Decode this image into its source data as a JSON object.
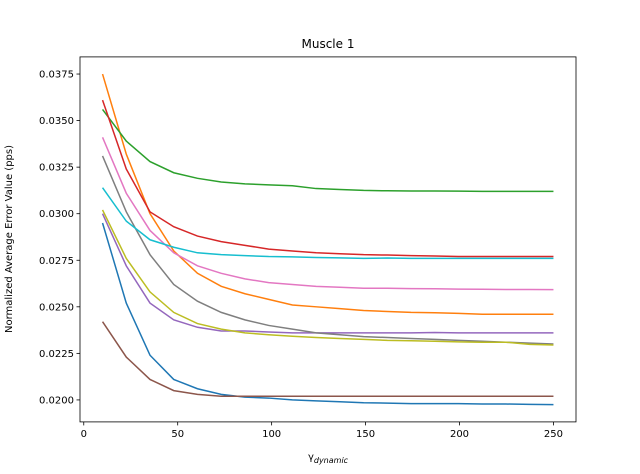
{
  "chart_data": {
    "type": "line",
    "title": "Muscle 1",
    "y_label": "Normalized Average Error Value (pps)",
    "x_label": {
      "symbol": "γ",
      "subscript": "dynamic"
    },
    "x": [
      10,
      22.63,
      35.26,
      47.89,
      60.53,
      73.16,
      85.79,
      98.42,
      111.05,
      123.68,
      136.32,
      148.95,
      161.58,
      174.21,
      186.84,
      199.47,
      212.11,
      224.74,
      237.37,
      250
    ],
    "xlim": [
      -2,
      262
    ],
    "xticks": [
      0,
      50,
      100,
      150,
      200,
      250
    ],
    "ylim": [
      0.01882,
      0.03842
    ],
    "yticks": [
      {
        "value": 0.02,
        "label": "0.0200"
      },
      {
        "value": 0.0225,
        "label": "0.0225"
      },
      {
        "value": 0.025,
        "label": "0.0250"
      },
      {
        "value": 0.0275,
        "label": "0.0275"
      },
      {
        "value": 0.03,
        "label": "0.0300"
      },
      {
        "value": 0.0325,
        "label": "0.0325"
      },
      {
        "value": 0.035,
        "label": "0.0350"
      },
      {
        "value": 0.0375,
        "label": "0.0375"
      }
    ],
    "series": [
      {
        "color": "#1f77b4",
        "values": [
          0.0295,
          0.0252,
          0.0224,
          0.0211,
          0.0206,
          0.0203,
          0.02015,
          0.0201,
          0.02,
          0.01995,
          0.0199,
          0.01985,
          0.01983,
          0.0198,
          0.0198,
          0.0198,
          0.01978,
          0.01978,
          0.01976,
          0.01975
        ]
      },
      {
        "color": "#ff7f0e",
        "values": [
          0.0375,
          0.0332,
          0.03,
          0.028,
          0.0268,
          0.0261,
          0.0257,
          0.0254,
          0.0251,
          0.025,
          0.0249,
          0.0248,
          0.02475,
          0.0247,
          0.02468,
          0.02465,
          0.0246,
          0.0246,
          0.0246,
          0.0246
        ]
      },
      {
        "color": "#2ca02c",
        "values": [
          0.0356,
          0.0339,
          0.0328,
          0.0322,
          0.0319,
          0.0317,
          0.0316,
          0.03155,
          0.0315,
          0.03135,
          0.0313,
          0.03125,
          0.03123,
          0.03122,
          0.03122,
          0.03121,
          0.0312,
          0.0312,
          0.0312,
          0.0312
        ]
      },
      {
        "color": "#d62728",
        "values": [
          0.0361,
          0.0324,
          0.0301,
          0.0293,
          0.0288,
          0.0285,
          0.0283,
          0.0281,
          0.028,
          0.0279,
          0.02785,
          0.0278,
          0.02778,
          0.02775,
          0.02773,
          0.0277,
          0.0277,
          0.0277,
          0.0277,
          0.0277
        ]
      },
      {
        "color": "#9467bd",
        "values": [
          0.03,
          0.0272,
          0.0252,
          0.0243,
          0.0239,
          0.0237,
          0.0237,
          0.02365,
          0.0236,
          0.0236,
          0.0236,
          0.0236,
          0.0236,
          0.0236,
          0.02362,
          0.0236,
          0.0236,
          0.0236,
          0.0236,
          0.0236
        ]
      },
      {
        "color": "#8c564b",
        "values": [
          0.0242,
          0.0223,
          0.0211,
          0.0205,
          0.0203,
          0.0202,
          0.0202,
          0.0202,
          0.0202,
          0.0202,
          0.0202,
          0.0202,
          0.0202,
          0.0202,
          0.0202,
          0.0202,
          0.0202,
          0.0202,
          0.0202,
          0.0202
        ]
      },
      {
        "color": "#e377c2",
        "values": [
          0.0341,
          0.0311,
          0.0291,
          0.0279,
          0.0272,
          0.0268,
          0.0265,
          0.0263,
          0.0262,
          0.0261,
          0.02605,
          0.026,
          0.026,
          0.02598,
          0.02597,
          0.02595,
          0.02594,
          0.02593,
          0.02593,
          0.02592
        ]
      },
      {
        "color": "#7f7f7f",
        "values": [
          0.0331,
          0.0301,
          0.0278,
          0.0262,
          0.0253,
          0.0247,
          0.0243,
          0.024,
          0.0238,
          0.0236,
          0.0235,
          0.0234,
          0.02335,
          0.0233,
          0.02325,
          0.0232,
          0.02315,
          0.0231,
          0.02305,
          0.023
        ]
      },
      {
        "color": "#bcbd22",
        "values": [
          0.0302,
          0.0276,
          0.0258,
          0.0247,
          0.0241,
          0.0238,
          0.0236,
          0.0235,
          0.02342,
          0.02335,
          0.0233,
          0.02325,
          0.0232,
          0.02318,
          0.02315,
          0.02312,
          0.0231,
          0.0231,
          0.02298,
          0.02295
        ]
      },
      {
        "color": "#17becf",
        "values": [
          0.0314,
          0.0296,
          0.0286,
          0.0282,
          0.0279,
          0.0278,
          0.02775,
          0.0277,
          0.02768,
          0.02765,
          0.02763,
          0.0276,
          0.02762,
          0.0276,
          0.0276,
          0.0276,
          0.0276,
          0.0276,
          0.0276,
          0.0276
        ]
      }
    ]
  }
}
